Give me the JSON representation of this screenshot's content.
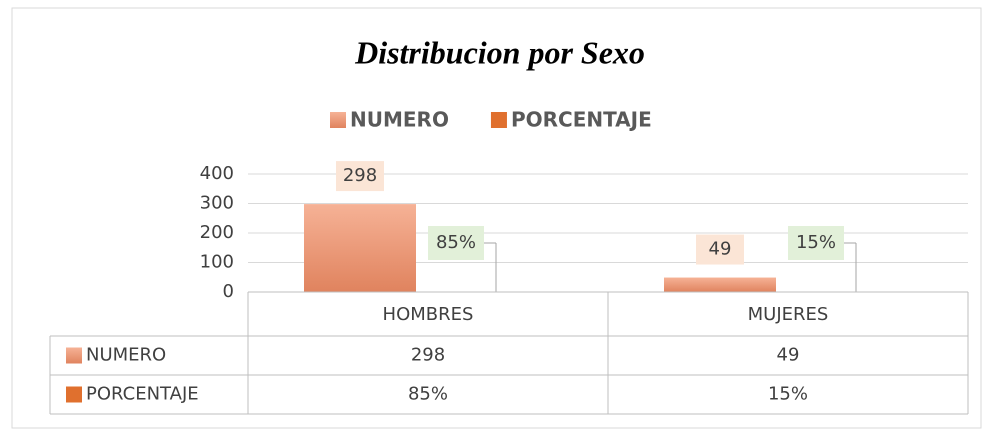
{
  "chart_data": {
    "type": "bar",
    "title": "Distribucion por Sexo",
    "categories": [
      "HOMBRES",
      "MUJERES"
    ],
    "series": [
      {
        "name": "NUMERO",
        "color": "#f0a07e",
        "values": [
          298,
          49
        ]
      },
      {
        "name": "PORCENTAJE",
        "color": "#e0702e",
        "values": [
          0.85,
          0.15
        ],
        "value_labels": [
          "85%",
          "15%"
        ]
      }
    ],
    "ylim": [
      0,
      400
    ],
    "yticks": [
      0,
      100,
      200,
      300,
      400
    ],
    "grid": true,
    "legend": "top",
    "data_table": true
  }
}
